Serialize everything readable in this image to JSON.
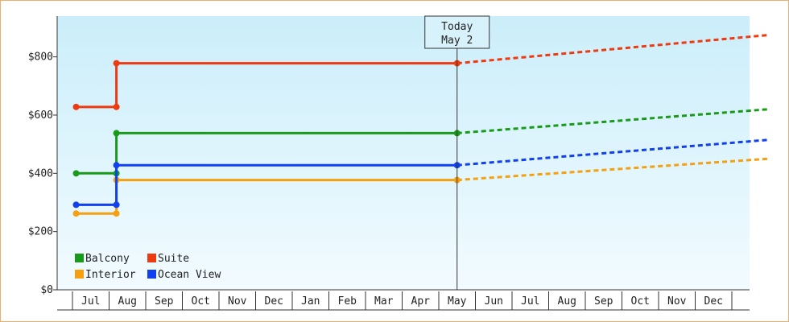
{
  "chart_data": {
    "type": "line",
    "step": true,
    "y_unit_prefix": "$",
    "ylim": [
      0,
      940
    ],
    "y_ticks": [
      0,
      200,
      400,
      600,
      800
    ],
    "y_tick_labels": [
      "$0",
      "$200",
      "$400",
      "$600",
      "$800"
    ],
    "x_months": [
      "Jul",
      "Aug",
      "Sep",
      "Oct",
      "Nov",
      "Dec",
      "Jan",
      "Feb",
      "Mar",
      "Apr",
      "May",
      "Jun",
      "Jul",
      "Aug",
      "Sep",
      "Oct",
      "Nov",
      "Dec"
    ],
    "grid": false,
    "background": "light-blue gradient",
    "today": {
      "title": "Today",
      "date": "May 2"
    },
    "legend_position": "bottom-left",
    "series": [
      {
        "name": "Balcony",
        "color": "#1a9a1a",
        "history": [
          [
            -0.4,
            400
          ],
          [
            0.7,
            400
          ],
          [
            0.7,
            538
          ],
          [
            10.0,
            538
          ]
        ],
        "projection": [
          [
            10.0,
            538
          ],
          [
            18.5,
            620
          ]
        ]
      },
      {
        "name": "Suite",
        "color": "#ee3a10",
        "history": [
          [
            -0.4,
            628
          ],
          [
            0.7,
            628
          ],
          [
            0.7,
            778
          ],
          [
            10.0,
            778
          ]
        ],
        "projection": [
          [
            10.0,
            778
          ],
          [
            18.5,
            875
          ]
        ]
      },
      {
        "name": "Interior",
        "color": "#f5a010",
        "history": [
          [
            -0.4,
            262
          ],
          [
            0.7,
            262
          ],
          [
            0.7,
            377
          ],
          [
            10.0,
            377
          ]
        ],
        "projection": [
          [
            10.0,
            377
          ],
          [
            18.5,
            450
          ]
        ]
      },
      {
        "name": "Ocean View",
        "color": "#1040f0",
        "history": [
          [
            -0.4,
            292
          ],
          [
            0.7,
            292
          ],
          [
            0.7,
            428
          ],
          [
            10.0,
            428
          ]
        ],
        "projection": [
          [
            10.0,
            428
          ],
          [
            18.5,
            515
          ]
        ]
      }
    ]
  }
}
